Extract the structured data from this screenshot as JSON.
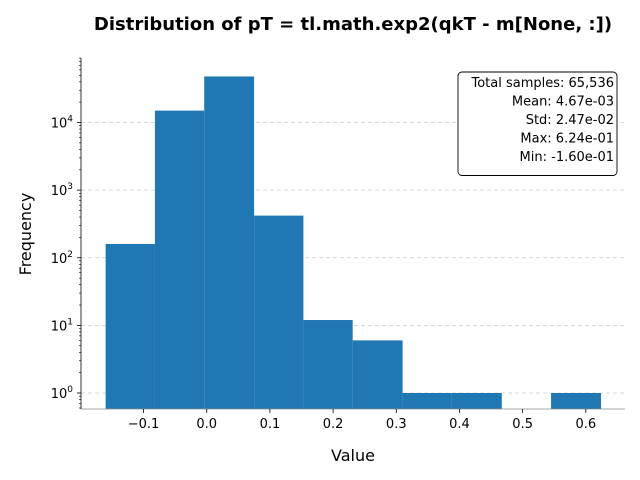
{
  "chart_data": {
    "type": "bar",
    "title": "Distribution of pT = tl.math.exp2(qkT - m[None, :])",
    "xlabel": "Value",
    "ylabel": "Frequency",
    "yscale": "log",
    "xlim": [
      -0.199,
      0.662
    ],
    "ylim": [
      0.58,
      90000
    ],
    "grid": "y-dashed",
    "bar_color": "#1f77b4",
    "bins": [
      {
        "start": -0.16,
        "end": -0.082,
        "count": 160
      },
      {
        "start": -0.082,
        "end": -0.004,
        "count": 15000
      },
      {
        "start": -0.004,
        "end": 0.075,
        "count": 48000
      },
      {
        "start": 0.075,
        "end": 0.153,
        "count": 420
      },
      {
        "start": 0.153,
        "end": 0.231,
        "count": 12
      },
      {
        "start": 0.231,
        "end": 0.31,
        "count": 6
      },
      {
        "start": 0.31,
        "end": 0.388,
        "count": 1
      },
      {
        "start": 0.388,
        "end": 0.467,
        "count": 1
      },
      {
        "start": 0.467,
        "end": 0.545,
        "count": 0
      },
      {
        "start": 0.545,
        "end": 0.624,
        "count": 1
      }
    ],
    "x_ticks": [
      {
        "value": -0.1,
        "label": "−0.1"
      },
      {
        "value": 0.0,
        "label": "0.0"
      },
      {
        "value": 0.1,
        "label": "0.1"
      },
      {
        "value": 0.2,
        "label": "0.2"
      },
      {
        "value": 0.3,
        "label": "0.3"
      },
      {
        "value": 0.4,
        "label": "0.4"
      },
      {
        "value": 0.5,
        "label": "0.5"
      },
      {
        "value": 0.6,
        "label": "0.6"
      }
    ],
    "y_ticks": [
      {
        "value": 1,
        "base": "10",
        "exp": "0"
      },
      {
        "value": 10,
        "base": "10",
        "exp": "1"
      },
      {
        "value": 100,
        "base": "10",
        "exp": "2"
      },
      {
        "value": 1000,
        "base": "10",
        "exp": "3"
      },
      {
        "value": 10000,
        "base": "10",
        "exp": "4"
      }
    ],
    "stats": [
      "Total samples: 65,536",
      "Mean: 4.67e-03",
      "Std: 2.47e-02",
      "Max: 6.24e-01",
      "Min: -1.60e-01"
    ],
    "stats_placement": "top-right"
  }
}
